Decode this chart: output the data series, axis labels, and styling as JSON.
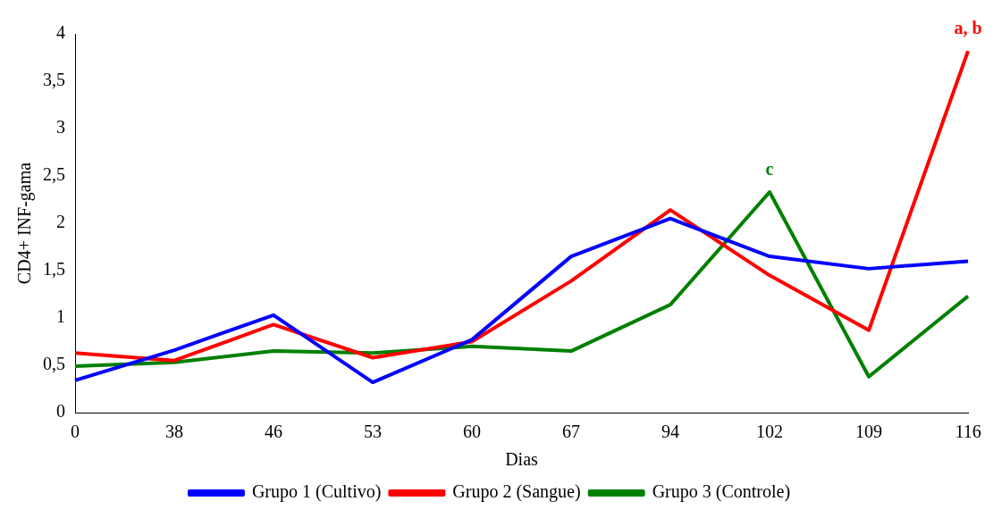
{
  "chart_data": {
    "type": "line",
    "xlabel": "Dias",
    "ylabel": "CD4+ INF-gama",
    "categories": [
      "0",
      "38",
      "46",
      "53",
      "60",
      "67",
      "94",
      "102",
      "109",
      "116"
    ],
    "series": [
      {
        "name": "Grupo 1 (Cultivo)",
        "color": "#0000ff",
        "values": [
          0.34,
          0.66,
          1.03,
          0.32,
          0.77,
          1.65,
          2.05,
          1.65,
          1.52,
          1.6
        ]
      },
      {
        "name": "Grupo 2 (Sangue)",
        "color": "#ff0000",
        "values": [
          0.63,
          0.55,
          0.93,
          0.58,
          0.75,
          1.39,
          2.14,
          1.45,
          0.87,
          3.82
        ]
      },
      {
        "name": "Grupo 3 (Controle)",
        "color": "#008000",
        "values": [
          0.49,
          0.53,
          0.65,
          0.63,
          0.7,
          0.65,
          1.14,
          2.33,
          0.38,
          1.23
        ]
      }
    ],
    "ylim": [
      0,
      4
    ],
    "yticks": [
      0,
      {
        "value": 0.5,
        "label": "0,5"
      },
      1,
      {
        "value": 1.5,
        "label": "1,5"
      },
      2,
      {
        "value": 2.5,
        "label": "2,5"
      },
      3,
      {
        "value": 3.5,
        "label": "3,5"
      },
      4
    ],
    "annotations": [
      {
        "text": "c",
        "x": "102",
        "y": 2.33
      },
      {
        "text": "a, b",
        "x": "116",
        "y": 3.82
      }
    ],
    "legend": "bottom",
    "grid": false,
    "marker": "none",
    "line_style": "solid"
  }
}
